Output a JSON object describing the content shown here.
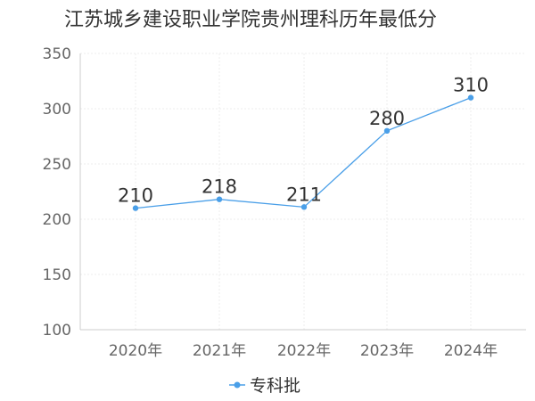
{
  "chart_data": {
    "type": "line",
    "title": "江苏城乡建设职业学院贵州理科历年最低分",
    "categories": [
      "2020年",
      "2021年",
      "2022年",
      "2023年",
      "2024年"
    ],
    "series": [
      {
        "name": "专科批",
        "values": [
          210,
          218,
          211,
          280,
          310
        ],
        "color": "#4a9fe8"
      }
    ],
    "xlabel": "",
    "ylabel": "",
    "ylim": [
      100,
      350
    ],
    "yticks": [
      100,
      150,
      200,
      250,
      300,
      350
    ],
    "grid": true,
    "legend": "bottom-center",
    "data_labels": true
  }
}
